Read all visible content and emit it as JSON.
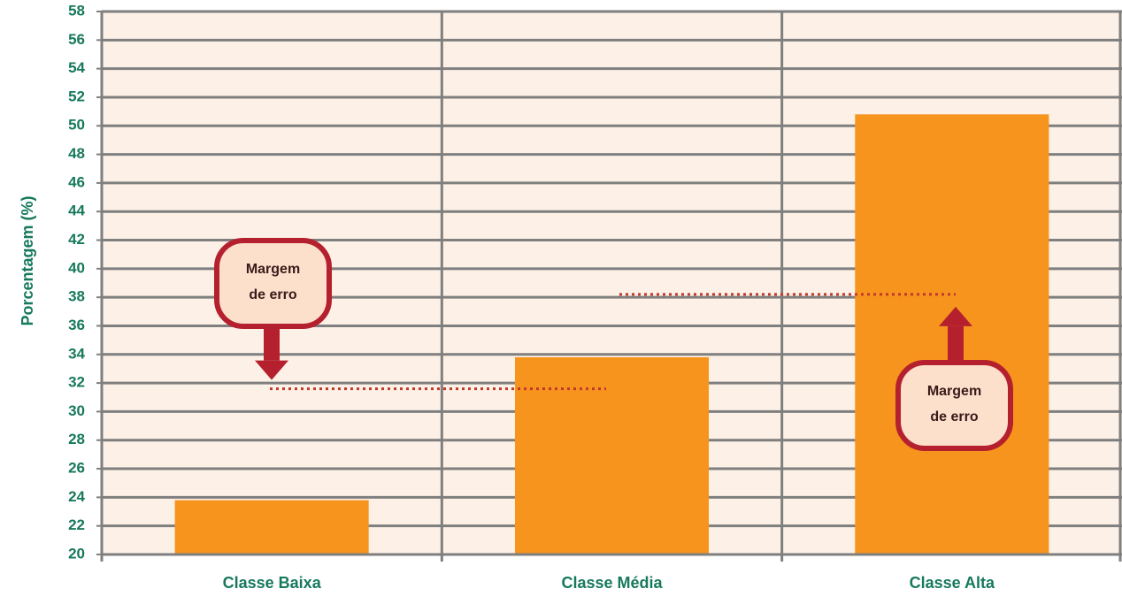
{
  "chart_data": {
    "type": "bar",
    "y_label": "Porcentagem (%)",
    "categories": [
      "Classe Baixa",
      "Classe Média",
      "Classe Alta"
    ],
    "values": [
      23.8,
      33.8,
      50.8
    ],
    "color": "#f7941d",
    "ylim": [
      20,
      58
    ],
    "yticks": [
      20,
      22,
      24,
      26,
      28,
      30,
      32,
      34,
      36,
      38,
      40,
      42,
      44,
      46,
      48,
      50,
      52,
      54,
      56,
      58
    ],
    "grid": true,
    "annotations": [
      {
        "text": [
          "Margem",
          "de erro"
        ],
        "value": 31.6
      },
      {
        "text": [
          "Margem",
          "de erro"
        ],
        "value": 38.2
      }
    ]
  }
}
